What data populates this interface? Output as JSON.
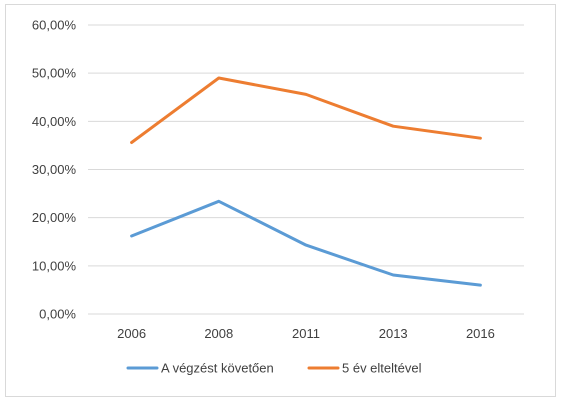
{
  "chart_data": {
    "type": "line",
    "title": "",
    "xlabel": "",
    "ylabel": "",
    "categories": [
      "2006",
      "2008",
      "2011",
      "2013",
      "2016"
    ],
    "y_ticks": [
      "0,00%",
      "10,00%",
      "20,00%",
      "30,00%",
      "40,00%",
      "50,00%",
      "60,00%"
    ],
    "ylim": [
      0,
      60
    ],
    "grid": "horizontal",
    "legend_position": "bottom",
    "series": [
      {
        "name": "A végzést követően",
        "color": "#5b9bd5",
        "values": [
          16.2,
          23.4,
          14.3,
          8.1,
          6.0
        ]
      },
      {
        "name": "5 év elteltével",
        "color": "#ed7d31",
        "values": [
          35.6,
          49.0,
          45.6,
          39.0,
          36.5
        ]
      }
    ]
  }
}
